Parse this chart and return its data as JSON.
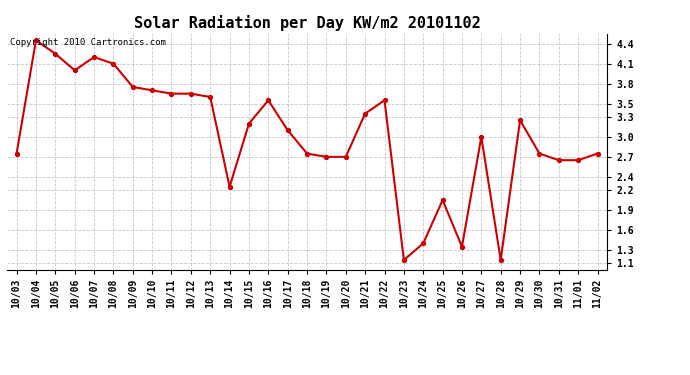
{
  "title": "Solar Radiation per Day KW/m2 20101102",
  "copyright_text": "Copyright 2010 Cartronics.com",
  "x_labels": [
    "10/03",
    "10/04",
    "10/05",
    "10/06",
    "10/07",
    "10/08",
    "10/09",
    "10/10",
    "10/11",
    "10/12",
    "10/13",
    "10/14",
    "10/15",
    "10/16",
    "10/17",
    "10/18",
    "10/19",
    "10/20",
    "10/21",
    "10/22",
    "10/23",
    "10/24",
    "10/25",
    "10/26",
    "10/27",
    "10/28",
    "10/29",
    "10/30",
    "10/31",
    "11/01",
    "11/02"
  ],
  "y_values": [
    2.75,
    4.45,
    4.25,
    4.0,
    4.2,
    4.1,
    3.75,
    3.7,
    3.65,
    3.65,
    3.6,
    2.25,
    3.2,
    3.55,
    3.1,
    2.75,
    2.7,
    2.7,
    3.35,
    3.55,
    1.15,
    1.4,
    2.05,
    1.35,
    3.0,
    1.15,
    3.25,
    2.75,
    2.65,
    2.65,
    2.75
  ],
  "line_color": "#cc0000",
  "marker_color": "#cc0000",
  "background_color": "#ffffff",
  "grid_color": "#bbbbbb",
  "ylim": [
    1.0,
    4.55
  ],
  "yticks": [
    1.1,
    1.3,
    1.6,
    1.9,
    2.2,
    2.4,
    2.7,
    3.0,
    3.3,
    3.5,
    3.8,
    4.1,
    4.4
  ],
  "title_fontsize": 11,
  "tick_fontsize": 7,
  "copyright_fontsize": 6.5
}
